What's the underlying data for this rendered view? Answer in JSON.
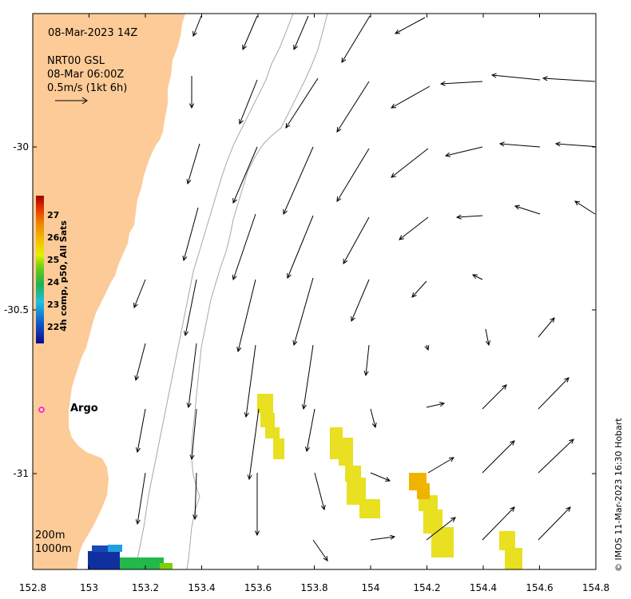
{
  "map": {
    "timestamp": "08-Mar-2023 14Z",
    "product": "NRT00 GSL",
    "product_time": "08-Mar 06:00Z",
    "scale_label": "0.5m/s (1kt 6h)",
    "depth_labels": [
      "200m",
      "1000m"
    ],
    "argo_label": "Argo",
    "credit": "© IMOS 11-Mar-2023 16:30 Hobart",
    "lon_ticks": [
      "152.8",
      "153",
      "153.2",
      "153.4",
      "153.6",
      "153.8",
      "154",
      "154.2",
      "154.4",
      "154.6",
      "154.8"
    ],
    "lat_ticks": [
      "-30",
      "-30.5",
      "-31"
    ],
    "colors": {
      "land": "#fccb97",
      "ocean": "#ffffff",
      "isobath": "#a8a8a8",
      "argo": "#ff00ff"
    }
  },
  "colorbar": {
    "label": "4h comp, p50, All Sats",
    "ticks": [
      "22",
      "23",
      "24",
      "25",
      "26",
      "27"
    ]
  }
}
